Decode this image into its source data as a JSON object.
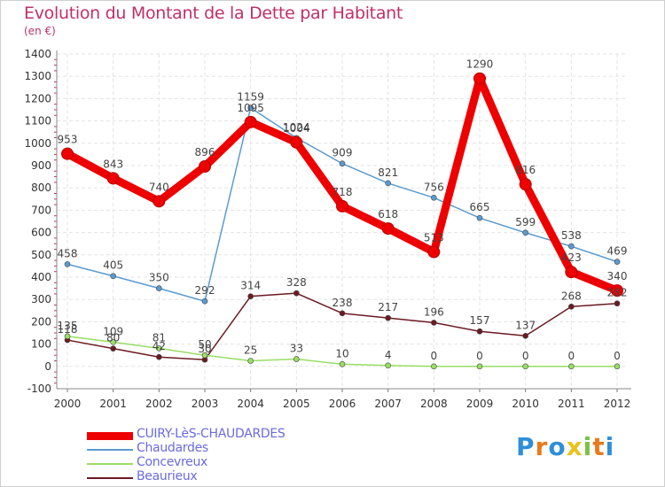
{
  "header": {
    "title": "Evolution du Montant de la Dette par Habitant",
    "subtitle": "(en €)"
  },
  "logo": {
    "letters": [
      "P",
      "r",
      "o",
      "x",
      "i",
      "t",
      "i"
    ],
    "colors": [
      "#2f8fd8",
      "#e87a1e",
      "#2f8fd8",
      "#e8c21e",
      "#7cc242",
      "#e87a1e",
      "#2f8fd8"
    ]
  },
  "chart_data": {
    "type": "line",
    "title": "Evolution du Montant de la Dette par Habitant",
    "ylabel": "(en €)",
    "x": [
      2000,
      2001,
      2002,
      2003,
      2004,
      2005,
      2006,
      2007,
      2008,
      2009,
      2010,
      2011,
      2012
    ],
    "ylim": [
      -100,
      1400
    ],
    "yticks": [
      -100,
      0,
      100,
      200,
      300,
      400,
      500,
      600,
      700,
      800,
      900,
      1000,
      1100,
      1200,
      1300,
      1400
    ],
    "grid": true,
    "legend_position": "bottom-left",
    "series": [
      {
        "name": "Beaurieux",
        "color": "#6b1a22",
        "width": 1.5,
        "values": [
          118,
          80,
          42,
          30,
          314,
          328,
          238,
          217,
          196,
          157,
          137,
          268,
          282
        ],
        "labels": [
          "118",
          "80",
          "42",
          "30",
          "314",
          "328",
          "238",
          "217",
          "196",
          "157",
          "137",
          "268",
          "282"
        ]
      },
      {
        "name": "Concevreux",
        "color": "#99dd66",
        "width": 1.5,
        "values": [
          135,
          109,
          81,
          50,
          25,
          33,
          10,
          4,
          0,
          0,
          0,
          0,
          0
        ],
        "labels": [
          "135",
          "109",
          "81",
          "50",
          "25",
          "33",
          "10",
          "4",
          "0",
          "0",
          "0",
          "0",
          "0"
        ]
      },
      {
        "name": "Chaudardes",
        "color": "#5b9bd0",
        "width": 1.5,
        "values": [
          458,
          405,
          350,
          292,
          1159,
          1024,
          909,
          821,
          756,
          665,
          599,
          538,
          469
        ],
        "labels": [
          "458",
          "405",
          "350",
          "292",
          "1159",
          "1024",
          "909",
          "821",
          "756",
          "665",
          "599",
          "538",
          "469"
        ]
      },
      {
        "name": "CUIRY-LèS-CHAUDARDES",
        "color": "#ee0000",
        "width": 9,
        "values": [
          953,
          843,
          740,
          896,
          1095,
          1004,
          718,
          618,
          513,
          1290,
          816,
          423,
          340
        ],
        "labels": [
          "953",
          "843",
          "740",
          "896",
          "1095",
          "1004",
          "718",
          "618",
          "513",
          "1290",
          "816",
          "423",
          "340"
        ]
      }
    ]
  },
  "legend": {
    "items": [
      {
        "label": "CUIRY-LèS-CHAUDARDES",
        "color": "#ee0000",
        "thickness": 9
      },
      {
        "label": "Chaudardes",
        "color": "#5b9bd0",
        "thickness": 2
      },
      {
        "label": "Concevreux",
        "color": "#99dd66",
        "thickness": 2
      },
      {
        "label": "Beaurieux",
        "color": "#6b1a22",
        "thickness": 2
      }
    ]
  }
}
